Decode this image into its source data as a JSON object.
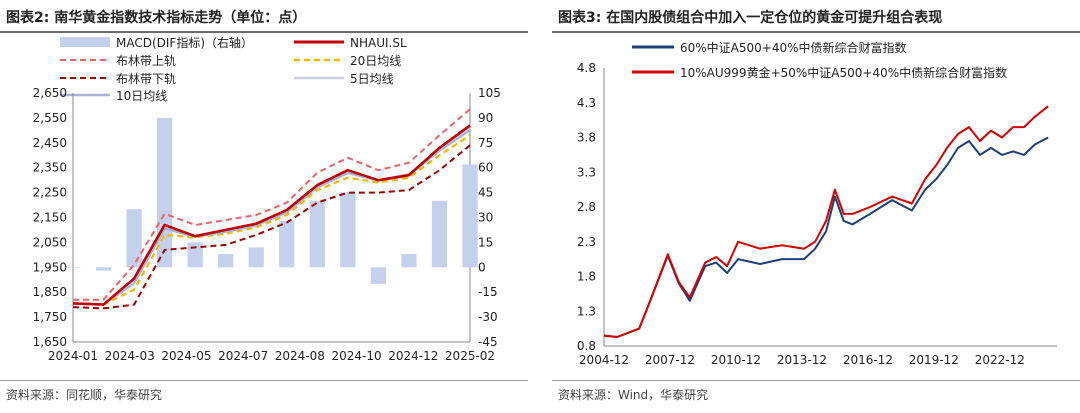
{
  "left": {
    "title": "图表2: 南华黄金指数技术指标走势（单位：点）",
    "source": "资料来源：同花顺，华泰研究",
    "legend": {
      "macd": "MACD(DIF指标)（右轴）",
      "nhaui": "NHAUI.SL",
      "boll_upper": "布林带上轨",
      "ma20": "20日均线",
      "boll_lower": "布林带下轨",
      "ma5": "5日均线",
      "ma10": "10日均线"
    },
    "colors": {
      "macd": "#c5d0ec",
      "nhaui": "#c00000",
      "boll_upper": "#e8646a",
      "ma20": "#f5b800",
      "boll_lower": "#a00000",
      "ma5": "#c9cde0",
      "ma10": "#a9b1d6"
    }
  },
  "right": {
    "title": "图表3: 在国内股债组合中加入一定仓位的黄金可提升组合表现",
    "source": "资料来源：Wind，华泰研究",
    "legend": {
      "s1": "60%中证A500+40%中债新综合财富指数",
      "s2": "10%AU999黄金+50%中证A500+40%中债新综合财富指数"
    },
    "colors": {
      "s1": "#1f3f7a",
      "s2": "#d40000"
    }
  },
  "chart_data": [
    {
      "type": "line",
      "x": [
        "2024-01",
        "2024-02",
        "2024-03",
        "2024-04",
        "2024-05",
        "2024-06",
        "2024-07",
        "2024-08",
        "2024-09",
        "2024-10",
        "2024-11",
        "2024-12",
        "2025-01",
        "2025-02"
      ],
      "xticks": [
        "2024-01",
        "2024-03",
        "2024-05",
        "2024-07",
        "2024-08",
        "2024-10",
        "2024-12",
        "2025-02"
      ],
      "yticks_left": [
        1650,
        1750,
        1850,
        1950,
        2050,
        2150,
        2250,
        2350,
        2450,
        2550,
        2650
      ],
      "yticks_right": [
        -45,
        -30,
        -15,
        0,
        15,
        30,
        45,
        60,
        75,
        90,
        105
      ],
      "ylim": [
        1650,
        2650
      ],
      "ylim_right": [
        -45,
        105
      ],
      "series": [
        {
          "name": "NHAUI.SL",
          "values": [
            1805,
            1800,
            1905,
            2120,
            2075,
            2100,
            2125,
            2180,
            2280,
            2340,
            2300,
            2320,
            2430,
            2520
          ]
        },
        {
          "name": "布林带上轨",
          "values": [
            1820,
            1820,
            1960,
            2165,
            2120,
            2140,
            2160,
            2210,
            2330,
            2390,
            2340,
            2370,
            2480,
            2585
          ]
        },
        {
          "name": "布林带下轨",
          "values": [
            1790,
            1785,
            1800,
            2020,
            2030,
            2040,
            2080,
            2130,
            2210,
            2250,
            2250,
            2260,
            2340,
            2440
          ]
        },
        {
          "name": "20日均线",
          "values": [
            1805,
            1800,
            1860,
            2080,
            2070,
            2085,
            2110,
            2160,
            2260,
            2310,
            2290,
            2310,
            2400,
            2480
          ]
        },
        {
          "name": "5日均线",
          "values": [
            1806,
            1802,
            1900,
            2115,
            2075,
            2095,
            2120,
            2175,
            2275,
            2335,
            2300,
            2325,
            2425,
            2510
          ]
        },
        {
          "name": "10日均线",
          "values": [
            1806,
            1801,
            1885,
            2105,
            2072,
            2092,
            2118,
            2170,
            2270,
            2328,
            2298,
            2320,
            2418,
            2500
          ]
        },
        {
          "name": "MACD(DIF指标)（右轴）",
          "values": [
            0,
            -2,
            35,
            90,
            15,
            8,
            12,
            28,
            40,
            45,
            -10,
            8,
            40,
            62
          ]
        }
      ]
    },
    {
      "type": "line",
      "x": [
        "2004-12",
        "2007-12",
        "2010-12",
        "2013-12",
        "2016-12",
        "2019-12",
        "2022-12"
      ],
      "xticks": [
        "2004-12",
        "2007-12",
        "2010-12",
        "2013-12",
        "2016-12",
        "2019-12",
        "2022-12"
      ],
      "yticks": [
        0.8,
        1.3,
        1.8,
        2.3,
        2.8,
        3.3,
        3.8,
        4.3,
        4.8
      ],
      "ylim": [
        0.8,
        4.8
      ],
      "series": [
        {
          "name": "60%中证A500+40%中债新综合财富指数",
          "x": [
            2004.9,
            2005.5,
            2006.5,
            2007.0,
            2007.8,
            2008.3,
            2008.8,
            2009.5,
            2010.0,
            2010.5,
            2011.0,
            2012.0,
            2013.0,
            2014.0,
            2014.5,
            2015.0,
            2015.4,
            2015.8,
            2016.2,
            2017.0,
            2018.0,
            2018.9,
            2019.5,
            2020.0,
            2020.5,
            2021.0,
            2021.5,
            2022.0,
            2022.5,
            2023.0,
            2023.5,
            2024.0,
            2024.5,
            2025.1
          ],
          "values": [
            0.95,
            0.93,
            1.05,
            1.45,
            2.1,
            1.7,
            1.45,
            1.95,
            2.0,
            1.85,
            2.05,
            1.98,
            2.05,
            2.05,
            2.2,
            2.45,
            2.95,
            2.6,
            2.55,
            2.7,
            2.9,
            2.75,
            3.05,
            3.2,
            3.4,
            3.65,
            3.75,
            3.55,
            3.65,
            3.55,
            3.6,
            3.55,
            3.7,
            3.8
          ]
        },
        {
          "name": "10%AU999黄金+50%中证A500+40%中债新综合财富指数",
          "x": [
            2004.9,
            2005.5,
            2006.5,
            2007.0,
            2007.8,
            2008.3,
            2008.8,
            2009.5,
            2010.0,
            2010.5,
            2011.0,
            2012.0,
            2013.0,
            2014.0,
            2014.5,
            2015.0,
            2015.4,
            2015.8,
            2016.2,
            2017.0,
            2018.0,
            2018.9,
            2019.5,
            2020.0,
            2020.5,
            2021.0,
            2021.5,
            2022.0,
            2022.5,
            2023.0,
            2023.5,
            2024.0,
            2024.5,
            2025.1
          ],
          "values": [
            0.95,
            0.93,
            1.05,
            1.45,
            2.12,
            1.72,
            1.5,
            2.0,
            2.08,
            1.95,
            2.3,
            2.2,
            2.25,
            2.2,
            2.3,
            2.6,
            3.05,
            2.7,
            2.7,
            2.8,
            2.95,
            2.85,
            3.2,
            3.4,
            3.65,
            3.85,
            3.95,
            3.75,
            3.9,
            3.8,
            3.95,
            3.95,
            4.1,
            4.25
          ]
        }
      ]
    }
  ]
}
